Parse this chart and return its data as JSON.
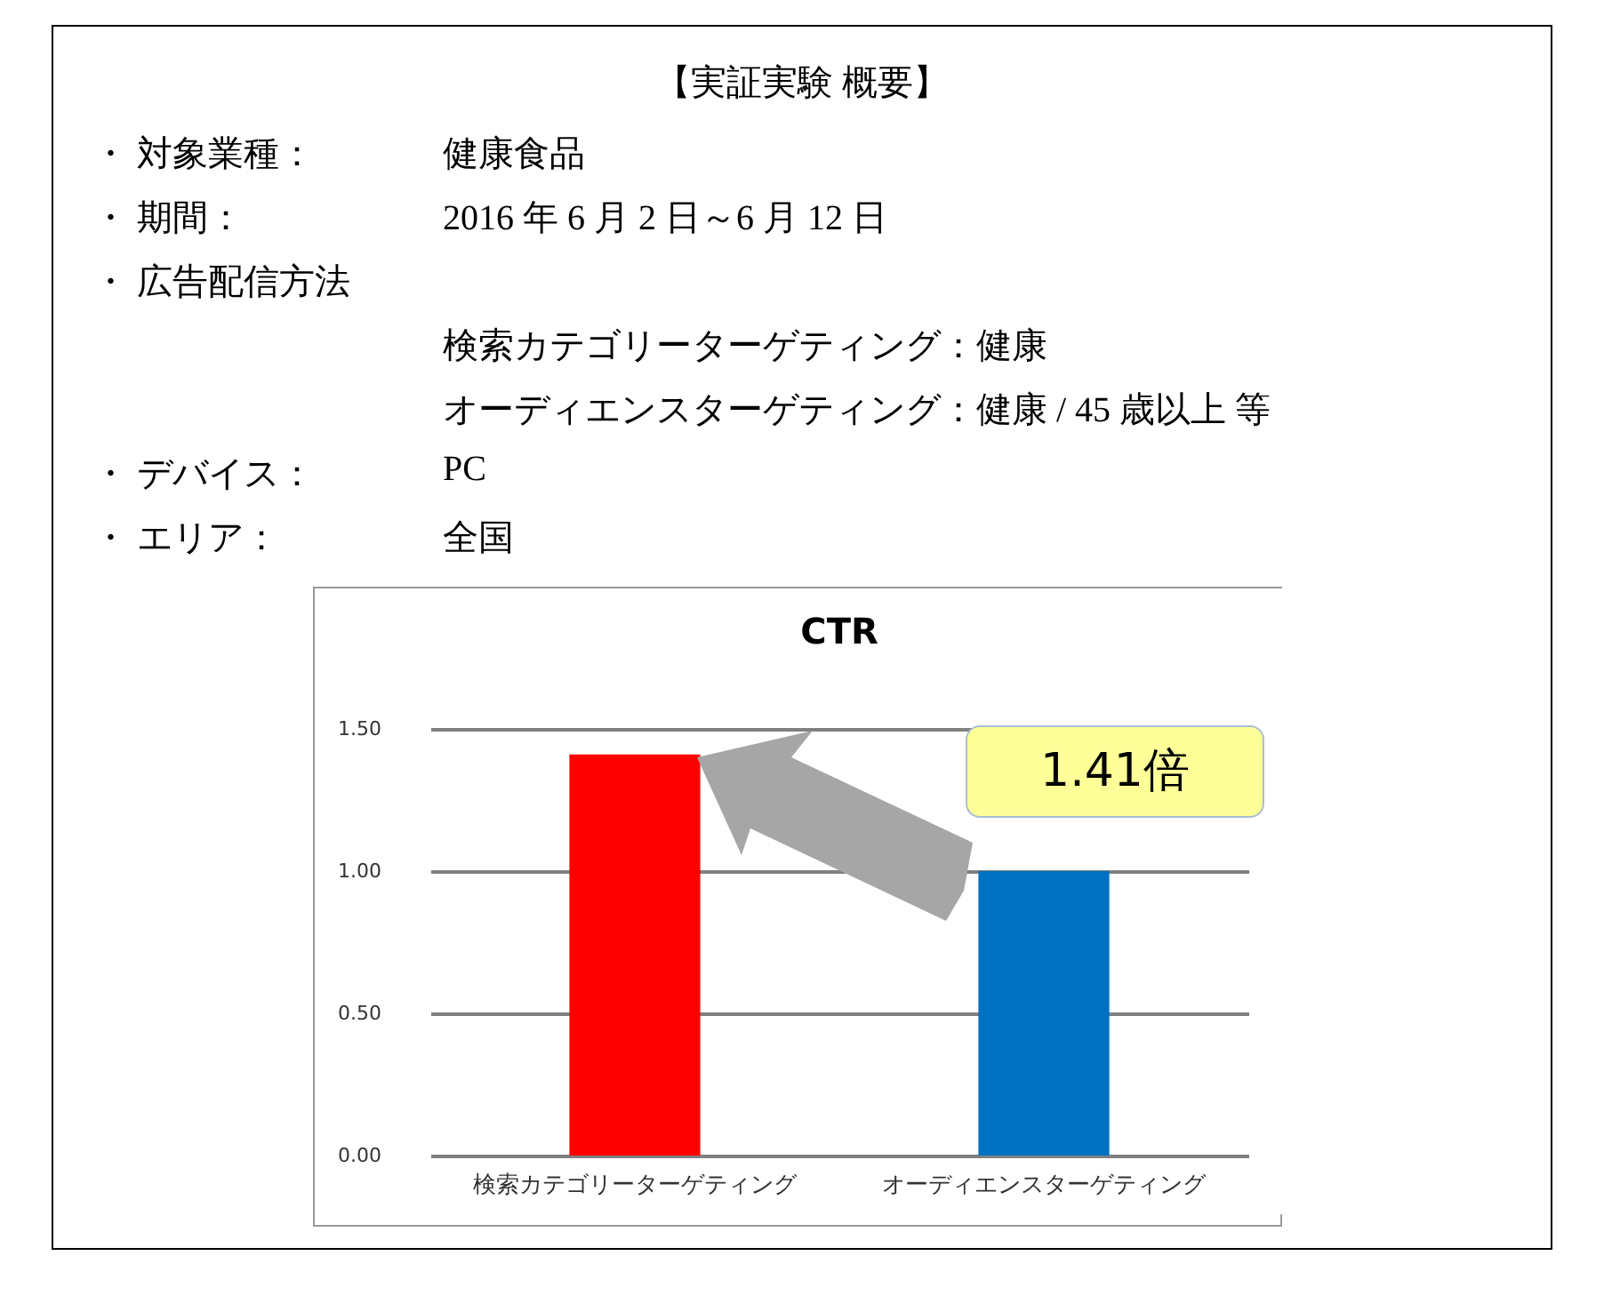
{
  "chart_data": {
    "type": "bar",
    "title": "CTR",
    "categories": [
      "検索カテゴリーターゲティング",
      "オーディエンスターゲティング"
    ],
    "values": [
      1.41,
      1.0
    ],
    "colors": [
      "#ff0000",
      "#0070c0"
    ],
    "ylim": [
      0,
      1.5
    ],
    "yticks": [
      {
        "value": 0,
        "label": "0.00"
      },
      {
        "value": 0.5,
        "label": "0.50"
      },
      {
        "value": 1,
        "label": "1.00"
      },
      {
        "value": 1.5,
        "label": "1.50"
      }
    ],
    "grid": "y",
    "annotations": [
      "【実証実験 概要】",
      "・ 対象業種：",
      "健康食品",
      "・ 期間：",
      "2016 年 6 月 2 日～6 月 12 日",
      "・ 広告配信方法",
      "検索カテゴリーターゲティング：健康",
      "オーディエンスターゲティング：健康 / 45 歳以上 等",
      "・ デバイス：",
      "PC",
      "・ エリア：",
      "全国",
      "1.41倍"
    ]
  }
}
